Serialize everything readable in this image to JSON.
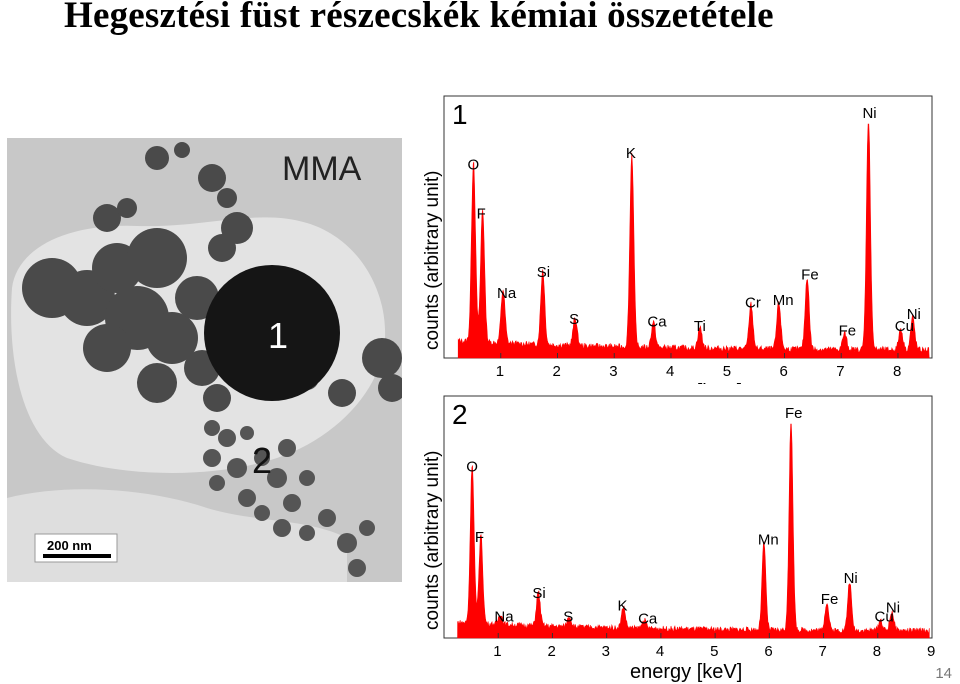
{
  "slide": {
    "title": "Hegesztési füst részecskék kémiai összetétele",
    "page_number": "14"
  },
  "micrograph": {
    "label": "MMA",
    "particle_1": "1",
    "particle_2": "2",
    "scale_bar": "200 nm",
    "colors": {
      "background": "#c9c9c9",
      "film": "#e4e4e4",
      "particle": "#151515"
    }
  },
  "chart_data": [
    {
      "type": "line",
      "panel_label": "1",
      "xlabel": "energy [keV]",
      "ylabel": "counts (arbitrary unit)",
      "xlim": [
        0,
        8.6
      ],
      "ylim": [
        0,
        100
      ],
      "xticks": [
        1,
        2,
        3,
        4,
        5,
        6,
        7,
        8
      ],
      "color": "#ff0000",
      "peaks": [
        {
          "element": "O",
          "x": 0.52,
          "y": 78
        },
        {
          "element": "F",
          "x": 0.68,
          "y": 57
        },
        {
          "element": "Na",
          "x": 1.04,
          "y": 23
        },
        {
          "element": "Si",
          "x": 1.74,
          "y": 32
        },
        {
          "element": "S",
          "x": 2.31,
          "y": 12
        },
        {
          "element": "K",
          "x": 3.31,
          "y": 83
        },
        {
          "element": "Ca",
          "x": 3.69,
          "y": 11
        },
        {
          "element": "Ti",
          "x": 4.51,
          "y": 9
        },
        {
          "element": "Cr",
          "x": 5.41,
          "y": 19
        },
        {
          "element": "Mn",
          "x": 5.9,
          "y": 20
        },
        {
          "element": "Fe",
          "x": 6.4,
          "y": 31
        },
        {
          "element": "Fe",
          "x": 7.06,
          "y": 7
        },
        {
          "element": "Ni",
          "x": 7.48,
          "y": 100
        },
        {
          "element": "Cu",
          "x": 8.05,
          "y": 9
        },
        {
          "element": "Ni",
          "x": 8.26,
          "y": 14
        }
      ]
    },
    {
      "type": "line",
      "panel_label": "2",
      "xlabel": "energy [keV]",
      "ylabel": "counts (arbitrary unit)",
      "xlim": [
        0,
        9
      ],
      "ylim": [
        0,
        100
      ],
      "xticks": [
        1,
        2,
        3,
        4,
        5,
        6,
        7,
        8,
        9
      ],
      "color": "#ff0000",
      "peaks": [
        {
          "element": "O",
          "x": 0.52,
          "y": 75
        },
        {
          "element": "F",
          "x": 0.68,
          "y": 42
        },
        {
          "element": "Na",
          "x": 1.04,
          "y": 5
        },
        {
          "element": "Si",
          "x": 1.74,
          "y": 16
        },
        {
          "element": "S",
          "x": 2.31,
          "y": 5
        },
        {
          "element": "K",
          "x": 3.31,
          "y": 10
        },
        {
          "element": "Ca",
          "x": 3.69,
          "y": 4
        },
        {
          "element": "Mn",
          "x": 5.9,
          "y": 41
        },
        {
          "element": "Fe",
          "x": 6.4,
          "y": 100
        },
        {
          "element": "Fe",
          "x": 7.06,
          "y": 13
        },
        {
          "element": "Ni",
          "x": 7.48,
          "y": 23
        },
        {
          "element": "Cu",
          "x": 8.05,
          "y": 5
        },
        {
          "element": "Ni",
          "x": 8.26,
          "y": 9
        }
      ]
    }
  ]
}
